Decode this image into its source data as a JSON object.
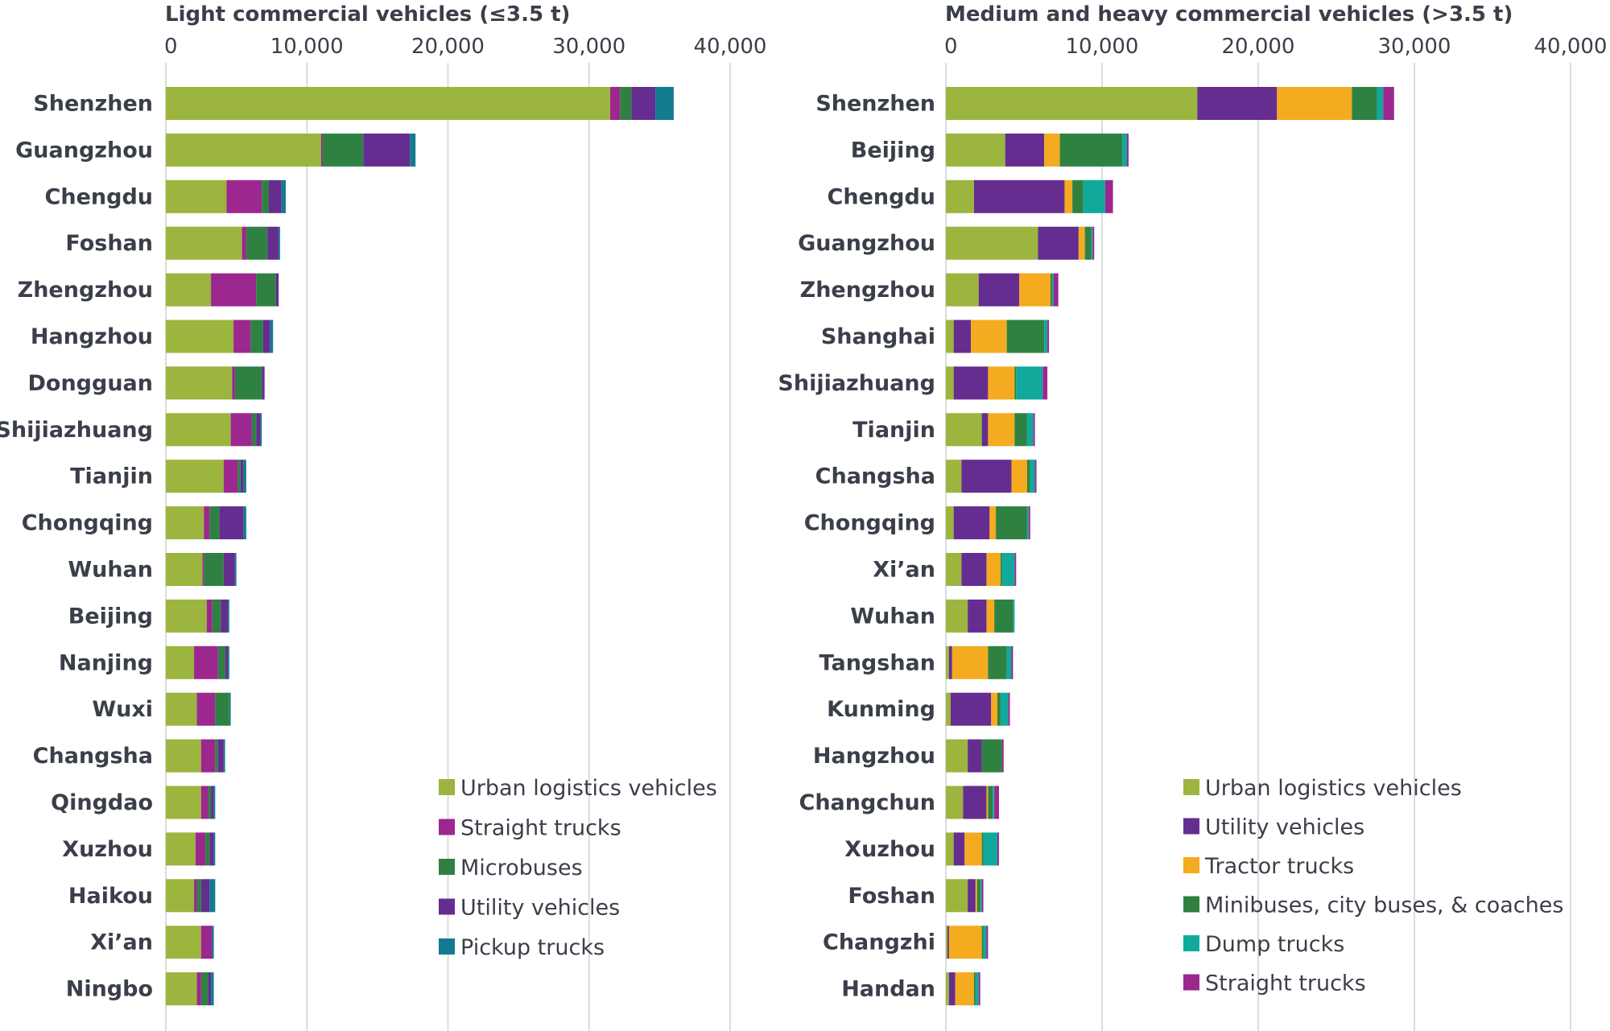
{
  "colors": {
    "Urban logistics vehicles": "#9bb53e",
    "Straight trucks": "#9c278f",
    "Microbuses": "#2f8142",
    "Utility vehicles": "#652d90",
    "Pickup trucks": "#137b8f",
    "Tractor trucks": "#f4ab1f",
    "Minibuses, city buses, & coaches": "#2f8142",
    "Dump trucks": "#10a99b"
  },
  "chart_data": [
    {
      "type": "bar",
      "orientation": "horizontal",
      "stacked": true,
      "title": "Light commercial vehicles (≤3.5 t)",
      "xlim": [
        0,
        40000
      ],
      "xticks": [
        0,
        10000,
        20000,
        30000,
        40000
      ],
      "xtick_labels": [
        "0",
        "10,000",
        "20,000",
        "30,000",
        "40,000"
      ],
      "categories": [
        "Shenzhen",
        "Guangzhou",
        "Chengdu",
        "Foshan",
        "Zhengzhou",
        "Hangzhou",
        "Dongguan",
        "Shijiazhuang",
        "Tianjin",
        "Chongqing",
        "Wuhan",
        "Beijing",
        "Nanjing",
        "Wuxi",
        "Changsha",
        "Qingdao",
        "Xuzhou",
        "Haikou",
        "Xi’an",
        "Ningbo"
      ],
      "series": [
        {
          "name": "Urban logistics vehicles",
          "values": [
            31500,
            11000,
            4300,
            5400,
            3200,
            4800,
            4700,
            4600,
            4100,
            2700,
            2600,
            2900,
            2000,
            2200,
            2500,
            2500,
            2100,
            2000,
            2500,
            2200
          ]
        },
        {
          "name": "Straight trucks",
          "values": [
            700,
            100,
            2500,
            300,
            3200,
            1200,
            200,
            1500,
            1000,
            400,
            100,
            400,
            1700,
            1300,
            1000,
            500,
            700,
            200,
            700,
            300
          ]
        },
        {
          "name": "Microbuses",
          "values": [
            800,
            2900,
            500,
            1500,
            1400,
            900,
            1900,
            300,
            200,
            700,
            1400,
            600,
            500,
            1000,
            200,
            200,
            300,
            300,
            0,
            500
          ]
        },
        {
          "name": "Utility vehicles",
          "values": [
            1700,
            3300,
            900,
            800,
            200,
            500,
            200,
            300,
            200,
            1700,
            800,
            500,
            200,
            0,
            400,
            200,
            300,
            600,
            100,
            200
          ]
        },
        {
          "name": "Pickup trucks",
          "values": [
            1300,
            400,
            300,
            100,
            0,
            200,
            0,
            100,
            200,
            200,
            100,
            100,
            100,
            100,
            100,
            100,
            100,
            400,
            100,
            200
          ]
        }
      ],
      "legend": "bottom-right"
    },
    {
      "type": "bar",
      "orientation": "horizontal",
      "stacked": true,
      "title": "Medium and heavy commercial vehicles (>3.5 t)",
      "xlim": [
        0,
        40000
      ],
      "xticks": [
        0,
        10000,
        20000,
        30000,
        40000
      ],
      "xtick_labels": [
        "0",
        "10,000",
        "20,000",
        "30,000",
        "40,000"
      ],
      "categories": [
        "Shenzhen",
        "Beijing",
        "Chengdu",
        "Guangzhou",
        "Zhengzhou",
        "Shanghai",
        "Shijiazhuang",
        "Tianjin",
        "Changsha",
        "Chongqing",
        "Xi’an",
        "Wuhan",
        "Tangshan",
        "Kunming",
        "Hangzhou",
        "Changchun",
        "Xuzhou",
        "Foshan",
        "Changzhi",
        "Handan"
      ],
      "series": [
        {
          "name": "Urban logistics vehicles",
          "values": [
            16100,
            3800,
            1800,
            5900,
            2100,
            500,
            500,
            2300,
            1000,
            500,
            1000,
            1400,
            200,
            300,
            1400,
            1100,
            500,
            1400,
            100,
            200
          ]
        },
        {
          "name": "Utility vehicles",
          "values": [
            5100,
            2500,
            5800,
            2600,
            2600,
            1100,
            2200,
            400,
            3200,
            2300,
            1600,
            1200,
            200,
            2600,
            900,
            1500,
            700,
            500,
            100,
            400
          ]
        },
        {
          "name": "Tractor trucks",
          "values": [
            4800,
            1000,
            500,
            400,
            2000,
            2300,
            1700,
            1700,
            1000,
            400,
            900,
            500,
            2300,
            400,
            0,
            100,
            1100,
            100,
            2100,
            1200
          ]
        },
        {
          "name": "Minibuses, city buses, & coaches",
          "values": [
            1600,
            4000,
            700,
            400,
            100,
            2400,
            100,
            800,
            200,
            2000,
            100,
            1200,
            1200,
            200,
            1300,
            300,
            100,
            200,
            100,
            100
          ]
        },
        {
          "name": "Dump trucks",
          "values": [
            400,
            300,
            1400,
            100,
            100,
            200,
            1700,
            400,
            300,
            100,
            800,
            100,
            300,
            500,
            0,
            100,
            900,
            100,
            200,
            200
          ]
        },
        {
          "name": "Straight trucks",
          "values": [
            700,
            100,
            500,
            100,
            300,
            100,
            300,
            100,
            100,
            100,
            100,
            0,
            100,
            100,
            100,
            300,
            100,
            100,
            100,
            100
          ]
        }
      ],
      "legend": "bottom-right"
    }
  ]
}
